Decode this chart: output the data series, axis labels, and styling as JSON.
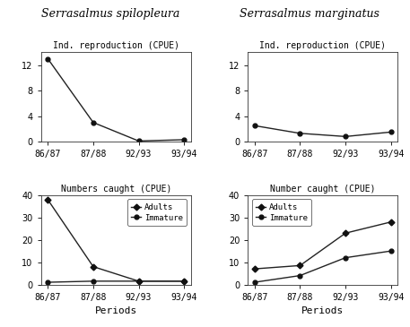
{
  "periods": [
    "86/87",
    "87/88",
    "92/93",
    "93/94"
  ],
  "spilo_repro": [
    13.0,
    3.0,
    0.1,
    0.3
  ],
  "marg_repro": [
    2.5,
    1.3,
    0.8,
    1.5
  ],
  "spilo_adults": [
    38.0,
    8.0,
    1.5,
    1.5
  ],
  "spilo_immature": [
    1.0,
    1.5,
    1.5,
    1.5
  ],
  "marg_adults": [
    7.0,
    8.5,
    23.0,
    28.0
  ],
  "marg_immature": [
    1.0,
    4.0,
    12.0,
    15.0
  ],
  "title_left": "Serrasalmus spilopleura",
  "title_right": "Serrasalmus marginatus",
  "subtitle_repro": "Ind. reproduction (CPUE)",
  "subtitle_numbers_left": "Numbers caught (CPUE)",
  "subtitle_numbers_right": "Number caught (CPUE)",
  "xlabel": "Periods",
  "legend_adults": "Adults",
  "legend_immature": "Immature",
  "repro_ylim": [
    0,
    14
  ],
  "repro_yticks": [
    0,
    4,
    8,
    12
  ],
  "numbers_ylim": [
    0,
    40
  ],
  "numbers_yticks": [
    0,
    10,
    20,
    30,
    40
  ],
  "line_color": "#222222",
  "marker_color": "#111111",
  "bg_color": "#ffffff"
}
